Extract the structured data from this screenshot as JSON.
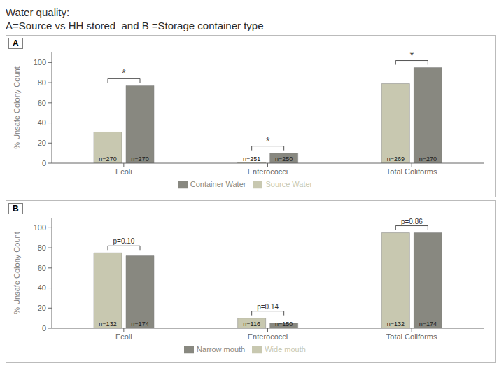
{
  "chart_data": [
    {
      "type": "bar",
      "title": "Water quality:",
      "subtitle": "A=Source vs HH stored  and B =Storage container type",
      "annotations": [
        {
          "text": "A"
        },
        {
          "category": "Ecoli",
          "text": "*"
        },
        {
          "category": "Enterococci",
          "text": "*"
        },
        {
          "category": "Total Coliforms",
          "text": "*"
        }
      ],
      "categories": [
        "Ecoli",
        "Enterococci",
        "Total Coliforms"
      ],
      "series": [
        {
          "name": "Source Water",
          "color": "#c8c8b0",
          "values": [
            31,
            1,
            79
          ],
          "n_labels": [
            "n=270",
            "n=251",
            "n=269"
          ]
        },
        {
          "name": "Container Water",
          "color": "#888880",
          "values": [
            77,
            10,
            95
          ],
          "n_labels": [
            "n=270",
            "n=250",
            "n=270"
          ]
        }
      ],
      "ylabel": "% Unsafe Colony Count",
      "ylim": [
        0,
        110
      ],
      "yticks": [
        0,
        20,
        40,
        60,
        80,
        100
      ],
      "grid": false
    },
    {
      "type": "bar",
      "annotations": [
        {
          "text": "B"
        },
        {
          "category": "Ecoli",
          "text": "p=0.10"
        },
        {
          "category": "Enterococci",
          "text": "p=0.14"
        },
        {
          "category": "Total Coliforms",
          "text": "p=0.86"
        }
      ],
      "categories": [
        "Ecoli",
        "Enterococci",
        "Total Coliforms"
      ],
      "series": [
        {
          "name": "Wide mouth",
          "color": "#c8c8b0",
          "values": [
            75,
            10,
            95
          ],
          "n_labels": [
            "n=132",
            "n=116",
            "n=132"
          ]
        },
        {
          "name": "Narrow mouth",
          "color": "#888880",
          "values": [
            72,
            5,
            95
          ],
          "n_labels": [
            "n=174",
            "n=150",
            "n=174"
          ]
        }
      ],
      "ylabel": "% Unsafe Colony Count",
      "ylim": [
        0,
        110
      ],
      "yticks": [
        0,
        20,
        40,
        60,
        80,
        100
      ],
      "grid": false
    }
  ]
}
